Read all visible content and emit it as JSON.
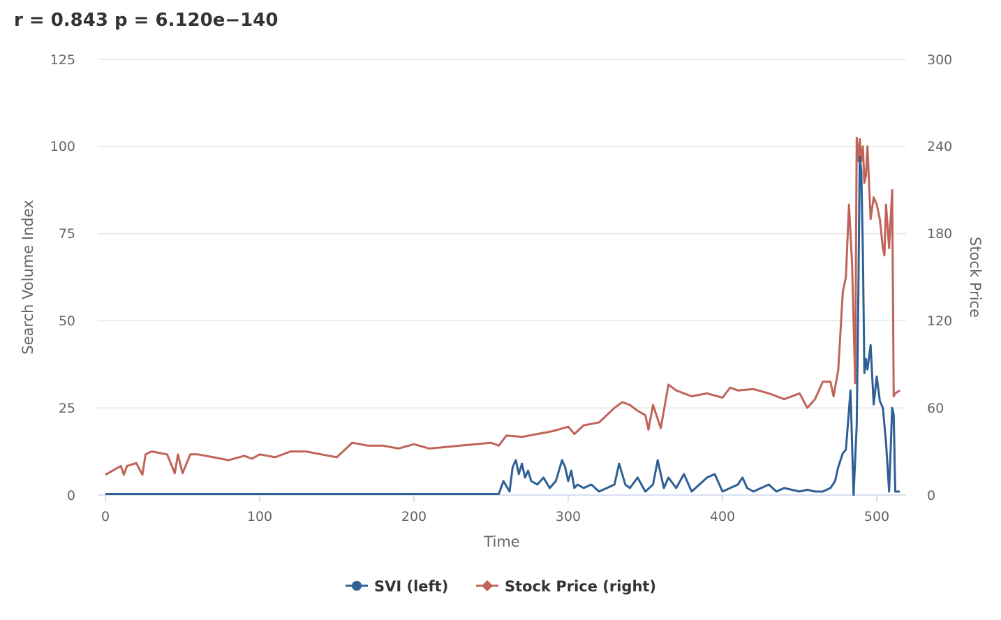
{
  "chart_data": {
    "type": "line",
    "title": "r = 0.843 p = 6.120e−140",
    "xlabel": "Time",
    "ylabel_left": "Search Volume Index",
    "ylabel_right": "Stock Price",
    "xlim": [
      0,
      517
    ],
    "ylim_left": [
      0,
      125
    ],
    "ylim_right": [
      0,
      300
    ],
    "x_ticks": [
      "0",
      "100",
      "200",
      "300",
      "400",
      "500"
    ],
    "y_left_ticks": [
      "0",
      "25",
      "50",
      "75",
      "100",
      "125"
    ],
    "y_right_ticks": [
      "0",
      "60",
      "120",
      "180",
      "240",
      "300"
    ],
    "grid": true,
    "legend_position": "bottom-center",
    "series": [
      {
        "name": "SVI (left)",
        "axis": "left",
        "color": "#2e5f95",
        "marker": "circle",
        "x": [
          0,
          100,
          200,
          255,
          258,
          262,
          264,
          266,
          268,
          270,
          272,
          274,
          276,
          280,
          284,
          288,
          292,
          296,
          298,
          300,
          302,
          304,
          306,
          310,
          315,
          320,
          325,
          330,
          333,
          335,
          337,
          340,
          345,
          350,
          355,
          358,
          362,
          365,
          370,
          375,
          380,
          385,
          390,
          395,
          400,
          405,
          410,
          413,
          416,
          420,
          425,
          430,
          435,
          440,
          445,
          450,
          455,
          460,
          465,
          470,
          473,
          475,
          478,
          480,
          483,
          485,
          487,
          488,
          489,
          490,
          491,
          492,
          493,
          494,
          496,
          498,
          500,
          502,
          504,
          506,
          508,
          510,
          511,
          512,
          515
        ],
        "y": [
          0.3,
          0.3,
          0.3,
          0.3,
          4,
          1,
          8,
          10,
          6,
          9,
          5,
          7,
          4,
          3,
          5,
          2,
          4,
          10,
          8,
          4,
          7,
          2,
          3,
          2,
          3,
          1,
          2,
          3,
          9,
          6,
          3,
          2,
          5,
          1,
          3,
          10,
          2,
          5,
          2,
          6,
          1,
          3,
          5,
          6,
          1,
          2,
          3,
          5,
          2,
          1,
          2,
          3,
          1,
          2,
          1.5,
          1,
          1.5,
          1,
          1,
          2,
          4,
          8,
          12,
          13,
          30,
          0,
          20,
          55,
          97,
          93,
          70,
          35,
          39,
          36,
          43,
          26,
          34,
          27,
          25,
          15,
          1,
          25,
          23,
          1,
          1
        ]
      },
      {
        "name": "Stock Price (right)",
        "axis": "right",
        "color": "#c0645a",
        "marker": "diamond",
        "x": [
          0,
          10,
          12,
          14,
          20,
          24,
          26,
          30,
          40,
          45,
          47,
          50,
          55,
          60,
          70,
          80,
          90,
          95,
          100,
          110,
          120,
          130,
          140,
          150,
          160,
          170,
          180,
          190,
          200,
          210,
          220,
          230,
          240,
          250,
          255,
          260,
          270,
          280,
          290,
          300,
          304,
          310,
          320,
          330,
          335,
          340,
          345,
          350,
          352,
          355,
          360,
          365,
          370,
          380,
          390,
          400,
          405,
          410,
          420,
          430,
          440,
          450,
          455,
          460,
          465,
          470,
          472,
          475,
          478,
          480,
          482,
          484,
          486,
          487,
          488,
          489,
          490,
          491,
          492,
          493,
          494,
          496,
          498,
          500,
          502,
          504,
          505,
          506,
          508,
          510,
          511,
          512,
          515
        ],
        "y": [
          14,
          20,
          14,
          20,
          22,
          14,
          28,
          30,
          28,
          15,
          28,
          15,
          28,
          28,
          26,
          24,
          27,
          25,
          28,
          26,
          30,
          30,
          28,
          26,
          36,
          34,
          34,
          32,
          35,
          32,
          33,
          34,
          35,
          36,
          34,
          41,
          40,
          42,
          44,
          47,
          42,
          48,
          50,
          60,
          64,
          62,
          58,
          55,
          45,
          62,
          46,
          76,
          72,
          68,
          70,
          67,
          74,
          72,
          73,
          70,
          66,
          70,
          60,
          66,
          78,
          78,
          68,
          86,
          140,
          150,
          200,
          160,
          77,
          246,
          230,
          245,
          230,
          240,
          215,
          220,
          240,
          190,
          205,
          200,
          190,
          170,
          165,
          200,
          170,
          210,
          68,
          70,
          72
        ]
      }
    ]
  }
}
